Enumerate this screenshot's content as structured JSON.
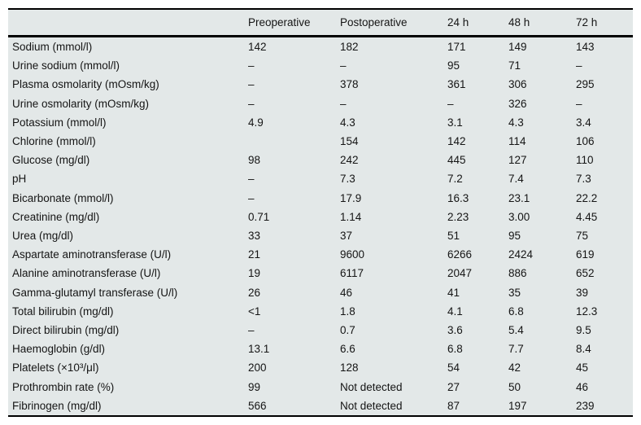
{
  "colors": {
    "page_background": "#ffffff",
    "table_background": "#e3e8e8",
    "rule_color": "#000000",
    "text_color": "#151515"
  },
  "table": {
    "columns": [
      "",
      "Preoperative",
      "Postoperative",
      "24 h",
      "48 h",
      "72 h"
    ],
    "rows": [
      {
        "label": "Sodium (mmol/l)",
        "values": [
          "142",
          "182",
          "171",
          "149",
          "143"
        ]
      },
      {
        "label": "Urine sodium (mmol/l)",
        "values": [
          "–",
          "–",
          "95",
          "71",
          "–"
        ]
      },
      {
        "label": "Plasma osmolarity (mOsm/kg)",
        "values": [
          "–",
          "378",
          "361",
          "306",
          "295"
        ]
      },
      {
        "label": "Urine osmolarity (mOsm/kg)",
        "values": [
          "–",
          "–",
          "–",
          "326",
          "–"
        ]
      },
      {
        "label": "Potassium (mmol/l)",
        "values": [
          "4.9",
          "4.3",
          "3.1",
          "4.3",
          "3.4"
        ]
      },
      {
        "label": "Chlorine (mmol/l)",
        "values": [
          "",
          "154",
          "142",
          "114",
          "106"
        ]
      },
      {
        "label": "Glucose (mg/dl)",
        "values": [
          "98",
          "242",
          "445",
          "127",
          "110"
        ]
      },
      {
        "label": "pH",
        "values": [
          "–",
          "7.3",
          "7.2",
          "7.4",
          "7.3"
        ]
      },
      {
        "label": "Bicarbonate (mmol/l)",
        "values": [
          "–",
          "17.9",
          "16.3",
          "23.1",
          "22.2"
        ]
      },
      {
        "label": "Creatinine (mg/dl)",
        "values": [
          "0.71",
          "1.14",
          "2.23",
          "3.00",
          "4.45"
        ]
      },
      {
        "label": "Urea (mg/dl)",
        "values": [
          "33",
          "37",
          "51",
          "95",
          "75"
        ]
      },
      {
        "label": "Aspartate aminotransferase (U/l)",
        "values": [
          "21",
          "9600",
          "6266",
          "2424",
          "619"
        ]
      },
      {
        "label": "Alanine aminotransferase (U/l)",
        "values": [
          "19",
          "6117",
          "2047",
          "886",
          "652"
        ]
      },
      {
        "label": "Gamma-glutamyl transferase (U/l)",
        "values": [
          "26",
          "46",
          "41",
          "35",
          "39"
        ]
      },
      {
        "label": "Total bilirubin (mg/dl)",
        "values": [
          "<1",
          "1.8",
          "4.1",
          "6.8",
          "12.3"
        ]
      },
      {
        "label": "Direct bilirubin (mg/dl)",
        "values": [
          "–",
          "0.7",
          "3.6",
          "5.4",
          "9.5"
        ]
      },
      {
        "label": "Haemoglobin (g/dl)",
        "values": [
          "13.1",
          "6.6",
          "6.8",
          "7.7",
          "8.4"
        ]
      },
      {
        "label": "Platelets (×10³/μl)",
        "values": [
          "200",
          "128",
          "54",
          "42",
          "45"
        ]
      },
      {
        "label": "Prothrombin rate (%)",
        "values": [
          "99",
          "Not detected",
          "27",
          "50",
          "46"
        ]
      },
      {
        "label": "Fibrinogen (mg/dl)",
        "values": [
          "566",
          "Not detected",
          "87",
          "197",
          "239"
        ]
      }
    ]
  }
}
